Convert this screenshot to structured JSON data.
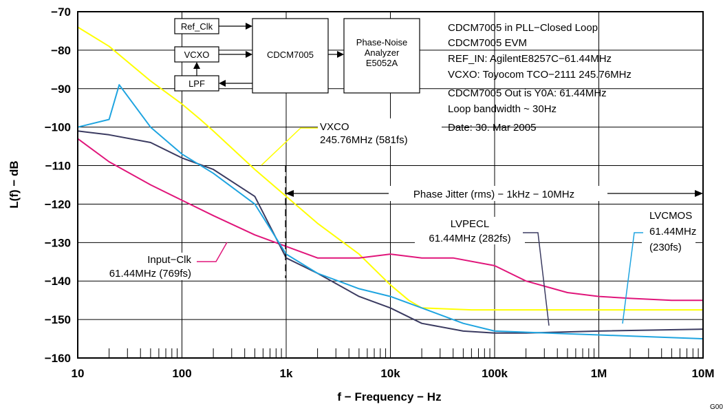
{
  "chart_data": {
    "type": "line",
    "xlabel": "f − Frequency − Hz",
    "ylabel": "L(f) − dB",
    "x_scale": "log",
    "xlim": [
      10,
      10000000
    ],
    "ylim": [
      -160,
      -70
    ],
    "x_ticks": [
      10,
      100,
      1000,
      10000,
      100000,
      1000000,
      10000000
    ],
    "x_tick_labels": [
      "10",
      "100",
      "1k",
      "10k",
      "100k",
      "1M",
      "10M"
    ],
    "y_ticks": [
      -160,
      -150,
      -140,
      -130,
      -120,
      -110,
      -100,
      -90,
      -80,
      -70
    ],
    "y_tick_labels": [
      "−160",
      "−150",
      "−140",
      "−130",
      "−120",
      "−110",
      "−100",
      "−90",
      "−80",
      "−70"
    ],
    "grid": true,
    "figure_id": "G00",
    "series": [
      {
        "name": "VXCO",
        "color": "#ffff00",
        "x": [
          10,
          20,
          50,
          100,
          150,
          200,
          500,
          1000,
          2000,
          5000,
          10000,
          15000,
          20000,
          60000,
          100000,
          1000000,
          10000000
        ],
        "y": [
          -74,
          -79,
          -88,
          -94,
          -98,
          -101,
          -111,
          -118,
          -125,
          -133,
          -141,
          -145,
          -147,
          -147.5,
          -147.5,
          -147.5,
          -147.5
        ]
      },
      {
        "name": "Input−Clk",
        "color": "#e0157a",
        "x": [
          10,
          20,
          50,
          100,
          200,
          500,
          1000,
          2000,
          5000,
          10000,
          20000,
          40000,
          100000,
          200000,
          500000,
          1000000,
          2000000,
          5000000,
          10000000
        ],
        "y": [
          -103,
          -109,
          -115,
          -119,
          -123,
          -128,
          -131,
          -134,
          -134,
          -133,
          -134,
          -134,
          -136,
          -140,
          -143,
          -144,
          -144.5,
          -145,
          -145
        ]
      },
      {
        "name": "LVPECL",
        "color": "#3a3a60",
        "x": [
          10,
          20,
          50,
          100,
          200,
          500,
          1000,
          2000,
          5000,
          10000,
          20000,
          50000,
          100000,
          200000,
          1000000,
          10000000
        ],
        "y": [
          -101,
          -102,
          -104,
          -108,
          -111,
          -118,
          -134,
          -138,
          -144,
          -147,
          -151,
          -153,
          -153.5,
          -153.5,
          -153,
          -152.5
        ]
      },
      {
        "name": "LVCMOS",
        "color": "#1ea4e0",
        "x": [
          10,
          20,
          25,
          50,
          100,
          200,
          500,
          1000,
          2000,
          5000,
          10000,
          20000,
          50000,
          100000,
          1000000,
          10000000
        ],
        "y": [
          -100,
          -98,
          -89,
          -100,
          -107,
          -112,
          -120,
          -133,
          -138,
          -142,
          -144,
          -147,
          -151,
          -153,
          -154,
          -155
        ]
      }
    ],
    "annotations": {
      "vxco_name": "VXCO",
      "vxco_value": "245.76MHz (581fs)",
      "input_name": "Input−Clk",
      "input_value": "61.44MHz (769fs)",
      "lvpecl_name": "LVPECL",
      "lvpecl_value": "61.44MHz (282fs)",
      "lvcmos_name": "LVCMOS",
      "lvcmos_freq": "61.44MHz",
      "lvcmos_jitter": "(230fs)",
      "jitter_range": "Phase Jitter (rms) − 1kHz − 10MHz"
    },
    "info_lines": [
      "CDCM7005 in PLL−Closed Loop",
      "CDCM7005 EVM",
      "REF_IN:  AgilentE8257C−61.44MHz",
      "VCXO: Toyocom TCO−2111 245.76MHz",
      "CDCM7005 Out is Y0A: 61.44MHz",
      "Loop bandwidth ~ 30Hz",
      "Date: 30. Mar 2005"
    ],
    "block_diagram": {
      "ref_clk": "Ref_Clk",
      "vcxo": "VCXO",
      "lpf": "LPF",
      "cdcm": "CDCM7005",
      "analyzer_line1": "Phase-Noise",
      "analyzer_line2": "Analyzer",
      "analyzer_line3": "E5052A"
    }
  }
}
